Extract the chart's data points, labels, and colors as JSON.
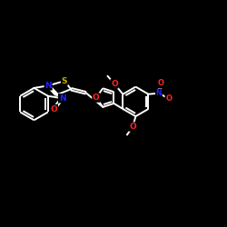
{
  "background_color": "#000000",
  "bond_color": "#ffffff",
  "bond_width": 1.4,
  "atom_colors": {
    "N": "#2222ff",
    "S": "#ccaa00",
    "O": "#ff2222",
    "C": "#ffffff"
  },
  "figsize": [
    2.5,
    2.5
  ],
  "dpi": 100,
  "xlim": [
    0,
    12
  ],
  "ylim": [
    0,
    12
  ]
}
